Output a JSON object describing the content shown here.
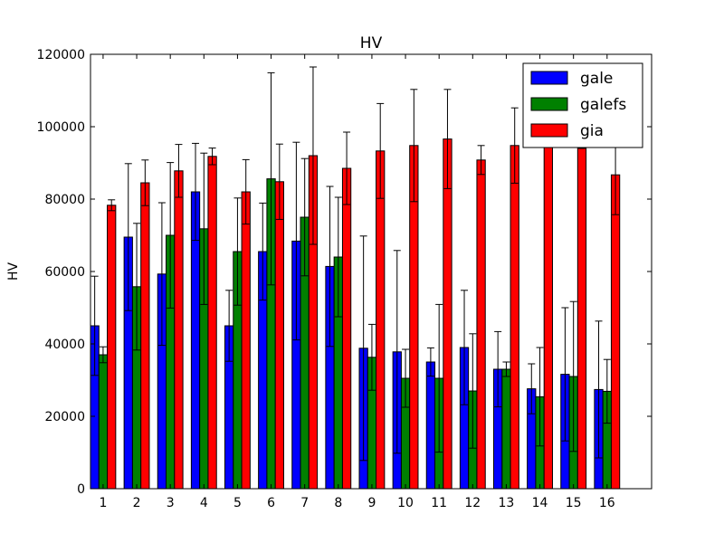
{
  "chart_data": {
    "type": "bar",
    "title": "HV",
    "xlabel": "",
    "ylabel": "HV",
    "ylim": [
      0,
      120000
    ],
    "yticks": [
      0,
      20000,
      40000,
      60000,
      80000,
      100000,
      120000
    ],
    "ytick_labels": [
      "0",
      "20000",
      "40000",
      "60000",
      "80000",
      "100000",
      "120000"
    ],
    "categories": [
      "1",
      "2",
      "3",
      "4",
      "5",
      "6",
      "7",
      "8",
      "9",
      "10",
      "11",
      "12",
      "13",
      "14",
      "15",
      "16"
    ],
    "legend_position": "top-right",
    "grid": false,
    "series": [
      {
        "name": "gale",
        "color": "#0000ff",
        "values": [
          45000,
          69500,
          59300,
          82000,
          45000,
          65500,
          68400,
          61400,
          38800,
          37800,
          35000,
          39000,
          33000,
          27600,
          31600,
          27400
        ],
        "errors": [
          13700,
          20300,
          19700,
          13400,
          9800,
          13400,
          27300,
          22100,
          31000,
          28000,
          3900,
          15800,
          10400,
          6900,
          18400,
          18900
        ]
      },
      {
        "name": "galefs",
        "color": "#008000",
        "values": [
          37000,
          55800,
          70000,
          71800,
          65500,
          85600,
          75000,
          64000,
          36300,
          30500,
          30500,
          27000,
          33000,
          25400,
          31000,
          26900
        ],
        "errors": [
          2200,
          17500,
          20100,
          20900,
          14800,
          29300,
          16200,
          16500,
          9100,
          8000,
          20400,
          15800,
          2000,
          13600,
          20700,
          8800
        ]
      },
      {
        "name": "gia",
        "color": "#ff0000",
        "values": [
          78300,
          84500,
          87800,
          91800,
          82000,
          84800,
          92000,
          88500,
          93300,
          94800,
          96600,
          90800,
          94800,
          100000,
          100000,
          86700
        ],
        "errors": [
          1500,
          6300,
          7300,
          2300,
          8900,
          10400,
          24500,
          10000,
          13100,
          15500,
          13700,
          4000,
          10400,
          5000,
          6000,
          11000
        ]
      }
    ]
  }
}
